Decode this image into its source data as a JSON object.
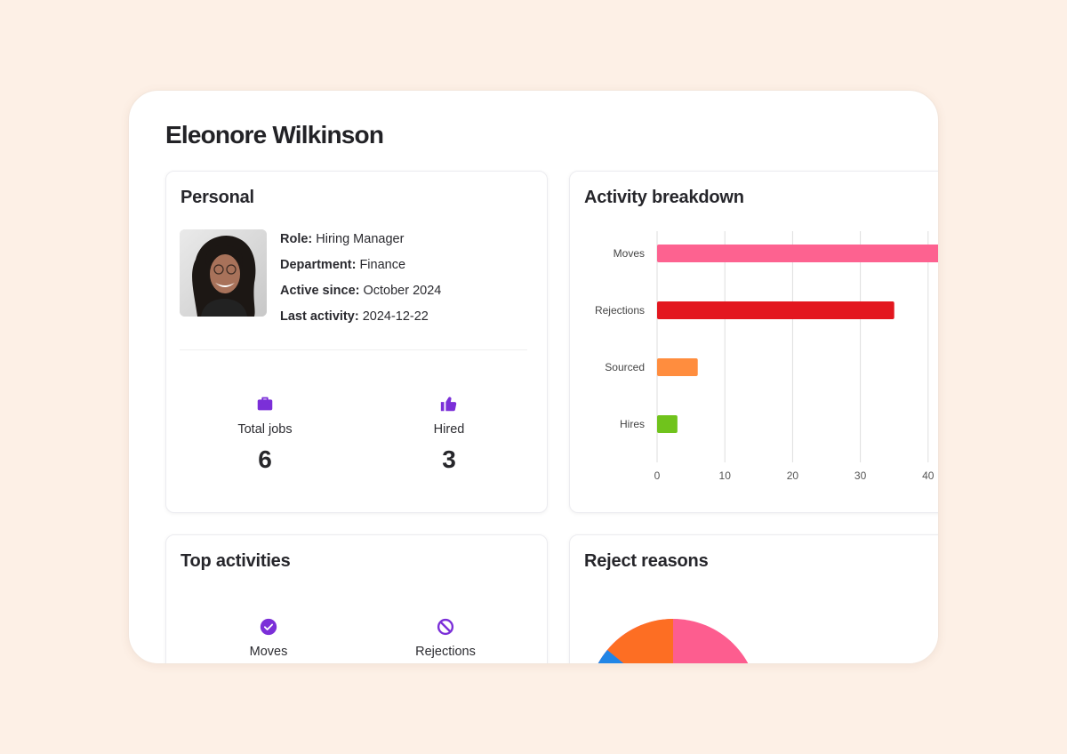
{
  "header": {
    "title": "Eleonore Wilkinson"
  },
  "personal": {
    "title": "Personal",
    "role_label": "Role:",
    "role_value": "Hiring Manager",
    "department_label": "Department:",
    "department_value": "Finance",
    "active_label": "Active since:",
    "active_value": "October 2024",
    "last_label": "Last activity:",
    "last_value": "2024-12-22",
    "stats": [
      {
        "label": "Total jobs",
        "value": "6",
        "icon": "briefcase-icon"
      },
      {
        "label": "Hired",
        "value": "3",
        "icon": "thumbs-up-icon"
      }
    ]
  },
  "breakdown": {
    "title": "Activity breakdown"
  },
  "chart_data": {
    "type": "bar",
    "orientation": "horizontal",
    "categories": [
      "Moves",
      "Rejections",
      "Sourced",
      "Hires"
    ],
    "values": [
      45,
      35,
      6,
      3
    ],
    "colors": [
      "#fd6290",
      "#e3171f",
      "#ff8d3e",
      "#70c31c"
    ],
    "xticks": [
      0,
      10,
      20,
      30,
      40
    ],
    "xlim": [
      0,
      50
    ],
    "grid": true
  },
  "top_activities": {
    "title": "Top activities",
    "items": [
      {
        "label": "Moves",
        "icon": "check-circle-icon"
      },
      {
        "label": "Rejections",
        "icon": "ban-icon"
      }
    ]
  },
  "reject_reasons": {
    "title": "Reject reasons"
  },
  "colors": {
    "accent": "#7b2fd8",
    "background": "#fdf0e6"
  }
}
